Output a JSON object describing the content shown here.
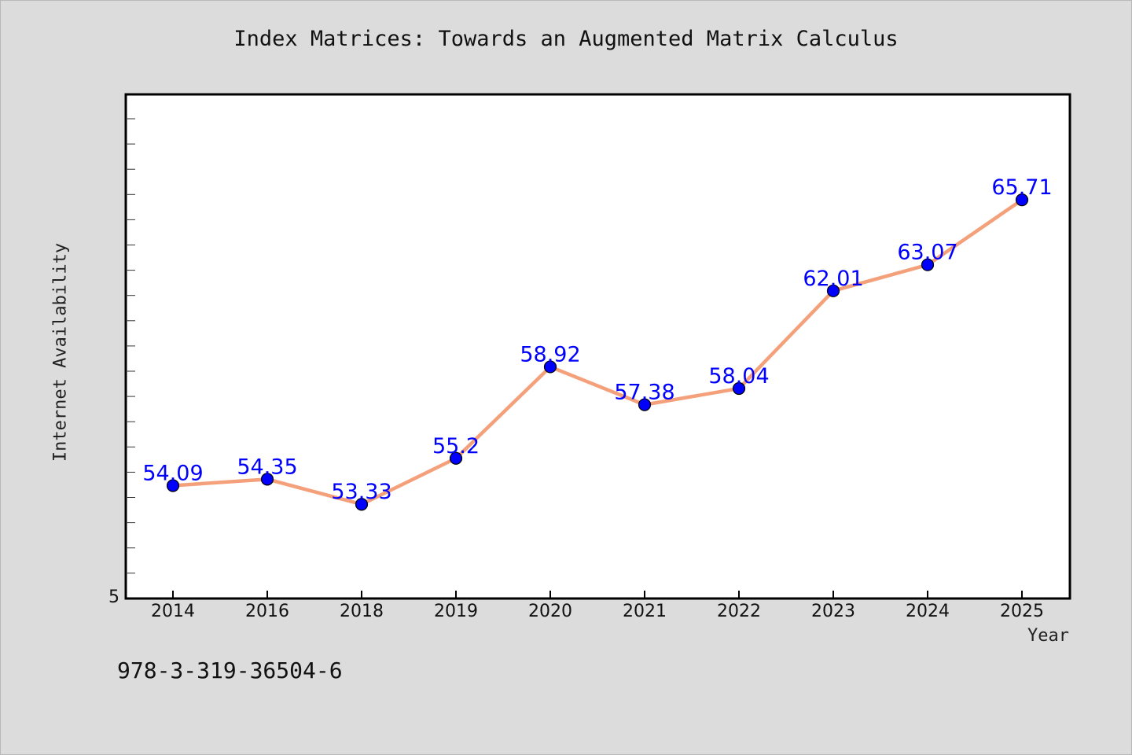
{
  "chart_data": {
    "type": "line",
    "title": "Index Matrices: Towards an Augmented Matrix Calculus",
    "xlabel": "Year",
    "ylabel": "Internet Availability",
    "categories": [
      "2014",
      "2016",
      "2018",
      "2019",
      "2020",
      "2021",
      "2022",
      "2023",
      "2024",
      "2025"
    ],
    "series": [
      {
        "values": [
          54.09,
          54.35,
          53.33,
          55.2,
          58.92,
          57.38,
          58.04,
          62.01,
          63.07,
          65.71
        ],
        "data_labels": [
          "54.09",
          "54.35",
          "53.33",
          "55.2",
          "58.92",
          "57.38",
          "58.04",
          "62.01",
          "63.07",
          "65.71"
        ]
      }
    ],
    "y_tick_labels": [
      "5"
    ],
    "ylim": [
      49.5,
      70.0
    ],
    "line_color": "#f4a07a",
    "marker_color": "#0000ff",
    "label_color": "#0000ff",
    "grid": false,
    "legend": "none"
  },
  "footer_text": "978-3-319-36504-6"
}
